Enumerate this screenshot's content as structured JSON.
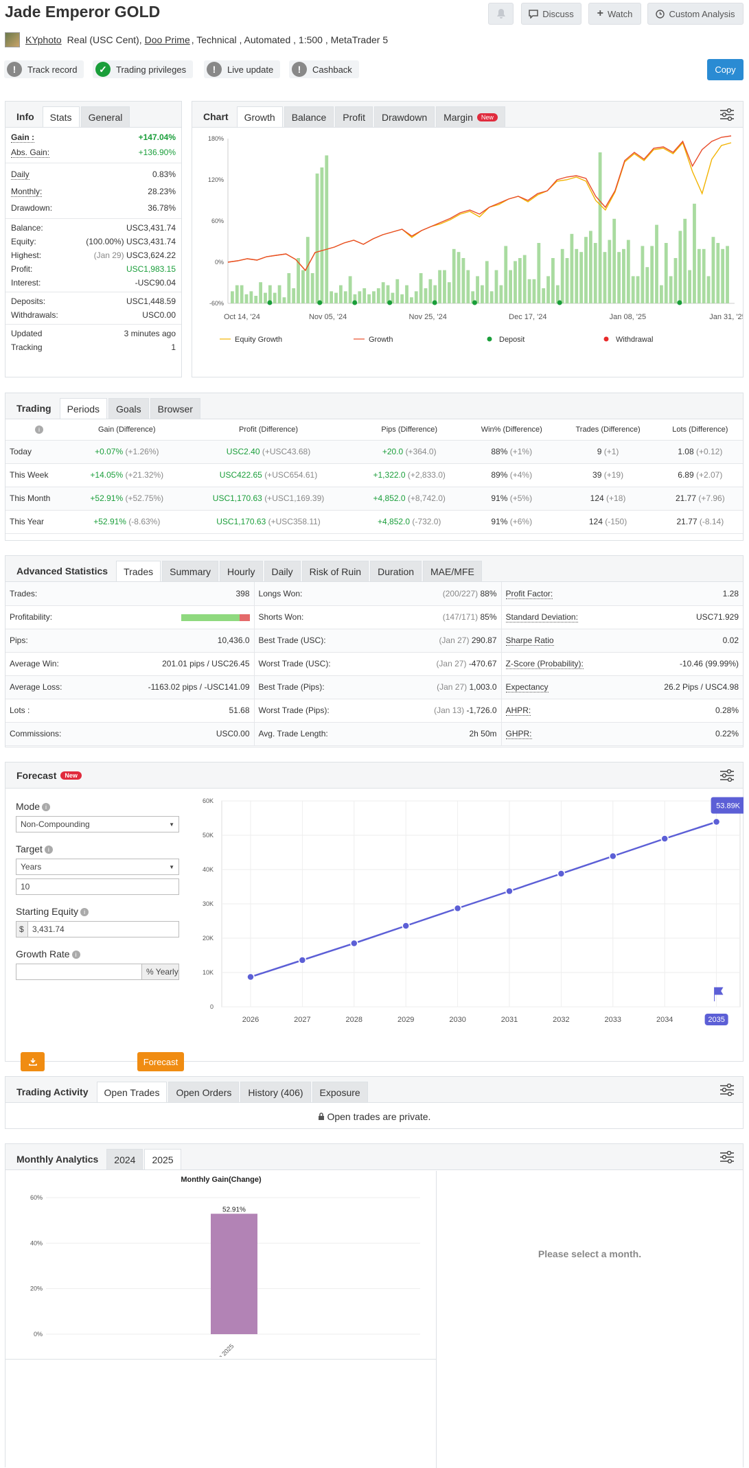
{
  "page": {
    "title": "Jade Emperor GOLD",
    "author": "KYphoto",
    "desc_pre": "Real (USC Cent),",
    "broker": "Doo Prime",
    "desc_post": ", Technical , Automated , 1:500 , MetaTrader 5"
  },
  "top_buttons": {
    "discuss": "Discuss",
    "watch": "Watch",
    "custom": "Custom Analysis"
  },
  "badges": [
    {
      "label": "Track record",
      "status": "warn"
    },
    {
      "label": "Trading privileges",
      "status": "ok"
    },
    {
      "label": "Live update",
      "status": "warn"
    },
    {
      "label": "Cashback",
      "status": "warn"
    }
  ],
  "copy_label": "Copy",
  "colors": {
    "green": "#1a9e3a",
    "blue": "#2a8bd3",
    "orange": "#f08c12",
    "forecast": "#5c5fd6",
    "bar": "#b283b5"
  },
  "info_tabs": [
    "Info",
    "Stats",
    "General"
  ],
  "stats": {
    "gain": {
      "label": "Gain :",
      "value": "+147.04%"
    },
    "abs_gain": {
      "label": "Abs. Gain:",
      "value": "+136.90%"
    },
    "daily": {
      "label": "Daily",
      "value": "0.83%"
    },
    "monthly": {
      "label": "Monthly:",
      "value": "28.23%"
    },
    "drawdown": {
      "label": "Drawdown:",
      "value": "36.78%"
    },
    "balance": {
      "label": "Balance:",
      "value": "USC3,431.74"
    },
    "equity": {
      "label": "Equity:",
      "note": "(100.00%)",
      "value": "USC3,431.74"
    },
    "highest": {
      "label": "Highest:",
      "note": "(Jan 29)",
      "value": "USC3,624.22"
    },
    "profit": {
      "label": "Profit:",
      "value": "USC1,983.15"
    },
    "interest": {
      "label": "Interest:",
      "value": "-USC90.04"
    },
    "deposits": {
      "label": "Deposits:",
      "value": "USC1,448.59"
    },
    "withdrawals": {
      "label": "Withdrawals:",
      "value": "USC0.00"
    },
    "updated": {
      "label": "Updated",
      "value": "3 minutes ago"
    },
    "tracking": {
      "label": "Tracking",
      "value": "1"
    }
  },
  "chart_tabs": {
    "header": "Chart",
    "tabs": [
      "Growth",
      "Balance",
      "Profit",
      "Drawdown",
      "Margin"
    ],
    "new_badge": "New"
  },
  "growth_chart": {
    "y_ticks": [
      "180%",
      "120%",
      "60%",
      "0%",
      "-60%"
    ],
    "x_ticks": [
      "Oct 14, '24",
      "Nov 05, '24",
      "Nov 25, '24",
      "Dec 17, '24",
      "Jan 08, '25",
      "Jan 31, '25"
    ],
    "legend": [
      "Equity Growth",
      "Growth",
      "Deposit",
      "Withdrawal"
    ]
  },
  "chart_data": [
    {
      "type": "line",
      "ylim": [
        -60,
        180
      ],
      "series": [
        {
          "name": "Growth",
          "values": [
            0,
            2,
            5,
            3,
            8,
            10,
            12,
            4,
            -12,
            14,
            18,
            22,
            28,
            32,
            26,
            34,
            40,
            44,
            48,
            38,
            46,
            52,
            58,
            64,
            72,
            76,
            70,
            80,
            86,
            92,
            96,
            90,
            100,
            104,
            120,
            124,
            126,
            122,
            96,
            80,
            104,
            148,
            160,
            150,
            166,
            168,
            160,
            176,
            140,
            164,
            176,
            182,
            184
          ]
        },
        {
          "name": "Equity Growth",
          "values": [
            0,
            2,
            5,
            3,
            8,
            10,
            12,
            4,
            -12,
            14,
            18,
            22,
            28,
            32,
            26,
            34,
            40,
            44,
            48,
            36,
            46,
            52,
            56,
            62,
            70,
            74,
            66,
            80,
            84,
            92,
            96,
            88,
            98,
            104,
            118,
            120,
            124,
            118,
            90,
            76,
            102,
            146,
            158,
            148,
            164,
            166,
            158,
            174,
            132,
            100,
            150,
            170,
            174
          ]
        }
      ]
    },
    {
      "type": "line",
      "x": [
        "2026",
        "2027",
        "2028",
        "2029",
        "2030",
        "2031",
        "2032",
        "2033",
        "2034",
        "2035"
      ],
      "values": [
        8700,
        13600,
        18500,
        23600,
        28700,
        33700,
        38800,
        43900,
        49000,
        53890
      ],
      "ylim": [
        0,
        60000
      ],
      "y_ticks": [
        "60K",
        "50K",
        "40K",
        "30K",
        "20K",
        "10K",
        "0"
      ]
    },
    {
      "type": "bar",
      "title": "Monthly Gain(Change)",
      "categories": [
        "Jan 2025"
      ],
      "values": [
        52.91
      ],
      "ylim": [
        0,
        60
      ],
      "y_ticks": [
        "60%",
        "40%",
        "20%",
        "0%"
      ]
    }
  ],
  "periods": {
    "tabs": [
      "Trading",
      "Periods",
      "Goals",
      "Browser"
    ],
    "headers": [
      "Gain (Difference)",
      "Profit (Difference)",
      "Pips (Difference)",
      "Win% (Difference)",
      "Trades (Difference)",
      "Lots (Difference)"
    ],
    "rows": [
      {
        "name": "Today",
        "gain": "+0.07%",
        "gain_d": "(+1.26%)",
        "profit": "USC2.40",
        "profit_d": "(+USC43.68)",
        "pips": "+20.0",
        "pips_d": "(+364.0)",
        "win": "88%",
        "win_d": "(+1%)",
        "trades": "9",
        "trades_d": "(+1)",
        "lots": "1.08",
        "lots_d": "(+0.12)"
      },
      {
        "name": "This Week",
        "gain": "+14.05%",
        "gain_d": "(+21.32%)",
        "profit": "USC422.65",
        "profit_d": "(+USC654.61)",
        "pips": "+1,322.0",
        "pips_d": "(+2,833.0)",
        "win": "89%",
        "win_d": "(+4%)",
        "trades": "39",
        "trades_d": "(+19)",
        "lots": "6.89",
        "lots_d": "(+2.07)"
      },
      {
        "name": "This Month",
        "gain": "+52.91%",
        "gain_d": "(+52.75%)",
        "profit": "USC1,170.63",
        "profit_d": "(+USC1,169.39)",
        "pips": "+4,852.0",
        "pips_d": "(+8,742.0)",
        "win": "91%",
        "win_d": "(+5%)",
        "trades": "124",
        "trades_d": "(+18)",
        "lots": "21.77",
        "lots_d": "(+7.96)"
      },
      {
        "name": "This Year",
        "gain": "+52.91%",
        "gain_d": "(-8.63%)",
        "profit": "USC1,170.63",
        "profit_d": "(+USC358.11)",
        "pips": "+4,852.0",
        "pips_d": "(-732.0)",
        "win": "91%",
        "win_d": "(+6%)",
        "trades": "124",
        "trades_d": "(-150)",
        "lots": "21.77",
        "lots_d": "(-8.14)"
      }
    ]
  },
  "advanced": {
    "tabs": [
      "Advanced Statistics",
      "Trades",
      "Summary",
      "Hourly",
      "Daily",
      "Risk of Ruin",
      "Duration",
      "MAE/MFE"
    ],
    "rows": [
      {
        "a": "Trades:",
        "av": "398",
        "b": "Longs Won:",
        "bn": "(200/227)",
        "bv": "88%",
        "c": "Profit Factor:",
        "cv": "1.28"
      },
      {
        "a": "Profitability:",
        "av": "",
        "b": "Shorts Won:",
        "bn": "(147/171)",
        "bv": "85%",
        "c": "Standard Deviation:",
        "cv": "USC71.929"
      },
      {
        "a": "Pips:",
        "av": "10,436.0",
        "b": "Best Trade (USC):",
        "bn": "(Jan 27)",
        "bv": "290.87",
        "c": "Sharpe Ratio",
        "cv": "0.02"
      },
      {
        "a": "Average Win:",
        "av": "201.01 pips / USC26.45",
        "b": "Worst Trade (USC):",
        "bn": "(Jan 27)",
        "bv": "-470.67",
        "c": "Z-Score (Probability):",
        "cv": "-10.46 (99.99%)"
      },
      {
        "a": "Average Loss:",
        "av": "-1163.02 pips / -USC141.09",
        "b": "Best Trade (Pips):",
        "bn": "(Jan 27)",
        "bv": "1,003.0",
        "c": "Expectancy",
        "cv": "26.2 Pips / USC4.98"
      },
      {
        "a": "Lots :",
        "av": "51.68",
        "b": "Worst Trade (Pips):",
        "bn": "(Jan 13)",
        "bv": "-1,726.0",
        "c": "AHPR:",
        "cv": "0.28%"
      },
      {
        "a": "Commissions:",
        "av": "USC0.00",
        "b": "Avg. Trade Length:",
        "bn": "",
        "bv": "2h 50m",
        "c": "GHPR:",
        "cv": "0.22%"
      }
    ],
    "profitability": 0.85
  },
  "forecast": {
    "title": "Forecast",
    "new_badge": "New",
    "mode_label": "Mode",
    "mode_value": "Non-Compounding",
    "target_label": "Target",
    "target_value": "Years",
    "target_num": "10",
    "equity_label": "Starting Equity",
    "currency": "$",
    "equity_value": "3,431.74",
    "growth_label": "Growth Rate",
    "growth_value": "",
    "growth_suffix": "% Yearly",
    "button": "Forecast",
    "end_label": "53.89K"
  },
  "activity": {
    "tabs": [
      "Trading Activity",
      "Open Trades",
      "Open Orders",
      "History (406)",
      "Exposure"
    ],
    "private": "Open trades are private."
  },
  "monthly": {
    "tabs": [
      "Monthly Analytics",
      "2024",
      "2025"
    ],
    "bar_label": "52.91%",
    "placeholder": "Please select a month."
  }
}
